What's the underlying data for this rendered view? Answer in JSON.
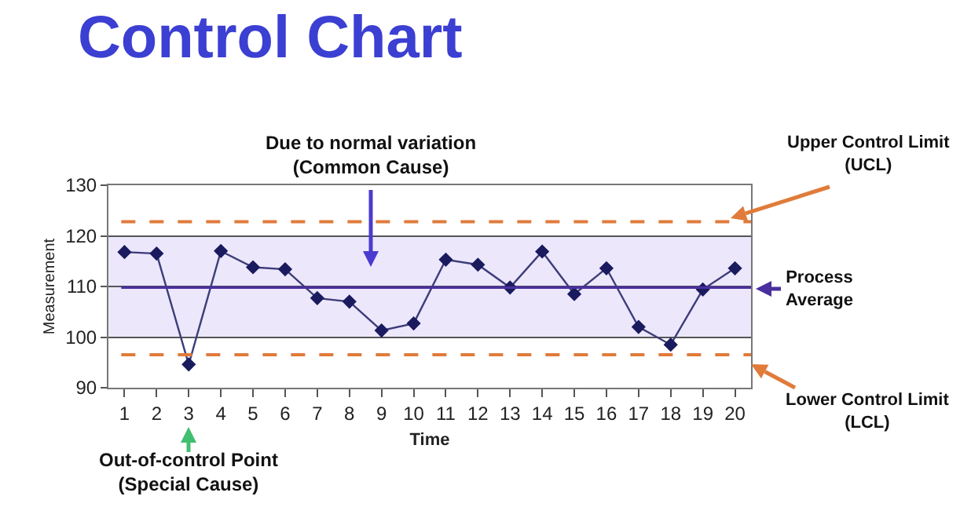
{
  "chart_data": {
    "type": "line",
    "title": "Control Chart",
    "xlabel": "Time",
    "ylabel": "Measurement",
    "x": [
      1,
      2,
      3,
      4,
      5,
      6,
      7,
      8,
      9,
      10,
      11,
      12,
      13,
      14,
      15,
      16,
      17,
      18,
      19,
      20
    ],
    "series": [
      {
        "color": "#3d3d7a",
        "values": [
          116.8,
          116.5,
          94.6,
          117,
          113.8,
          113.4,
          107.7,
          107,
          101.3,
          102.7,
          115.3,
          114.3,
          109.8,
          116.9,
          108.5,
          113.6,
          102,
          98.5,
          109.4,
          113.6
        ]
      }
    ],
    "xlim": [
      0.5,
      20.5
    ],
    "xticks": [
      1,
      2,
      3,
      4,
      5,
      6,
      7,
      8,
      9,
      10,
      11,
      12,
      13,
      14,
      15,
      16,
      17,
      18,
      19,
      20
    ],
    "ylim": [
      90,
      130
    ],
    "yticks": [
      90,
      100,
      110,
      120,
      130
    ],
    "grid": "y",
    "marker": "diamond",
    "line_style": "solid",
    "ref_lines": [
      {
        "axis": "y",
        "value": 122.8,
        "label": "Upper Control Limit\n(UCL)",
        "color": "#e07b3a",
        "line_style": "dashed"
      },
      {
        "axis": "y",
        "value": 109.8,
        "label": "Process\nAverage",
        "color": "#4a2f9e",
        "line_style": "solid"
      },
      {
        "axis": "y",
        "value": 96.5,
        "label": "Lower Control Limit\n(LCL)",
        "color": "#e07b3a",
        "line_style": "dashed"
      }
    ],
    "bands": [
      {
        "axis": "y",
        "from": 100,
        "to": 120,
        "color": "#ece7fb"
      }
    ],
    "annotations": [
      "Due to normal variation\n(Common Cause)",
      "Out-of-control Point\n(Special Cause)"
    ]
  }
}
